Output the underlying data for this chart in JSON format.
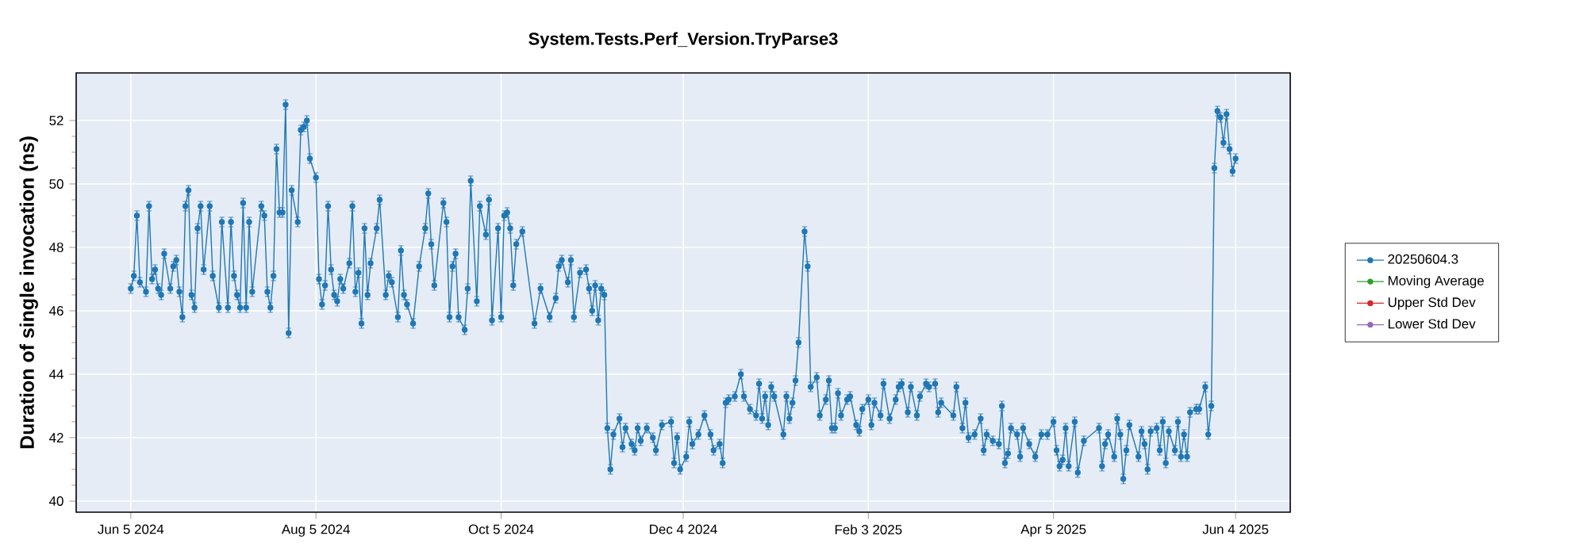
{
  "chart_data": {
    "type": "line",
    "title": "System.Tests.Perf_Version.TryParse3",
    "ylabel": "Duration of single invocation (ns)",
    "x": [
      "2024-06-05",
      "2024-06-06",
      "2024-06-07",
      "2024-06-08",
      "2024-06-10",
      "2024-06-11",
      "2024-06-12",
      "2024-06-13",
      "2024-06-14",
      "2024-06-15",
      "2024-06-16",
      "2024-06-18",
      "2024-06-19",
      "2024-06-20",
      "2024-06-21",
      "2024-06-22",
      "2024-06-23",
      "2024-06-24",
      "2024-06-25",
      "2024-06-26",
      "2024-06-27",
      "2024-06-28",
      "2024-06-29",
      "2024-07-01",
      "2024-07-02",
      "2024-07-04",
      "2024-07-05",
      "2024-07-07",
      "2024-07-08",
      "2024-07-09",
      "2024-07-10",
      "2024-07-11",
      "2024-07-12",
      "2024-07-13",
      "2024-07-14",
      "2024-07-15",
      "2024-07-18",
      "2024-07-19",
      "2024-07-20",
      "2024-07-21",
      "2024-07-22",
      "2024-07-23",
      "2024-07-24",
      "2024-07-25",
      "2024-07-26",
      "2024-07-27",
      "2024-07-28",
      "2024-07-30",
      "2024-07-31",
      "2024-08-01",
      "2024-08-02",
      "2024-08-03",
      "2024-08-05",
      "2024-08-06",
      "2024-08-07",
      "2024-08-08",
      "2024-08-09",
      "2024-08-10",
      "2024-08-11",
      "2024-08-12",
      "2024-08-13",
      "2024-08-14",
      "2024-08-16",
      "2024-08-17",
      "2024-08-18",
      "2024-08-19",
      "2024-08-20",
      "2024-08-21",
      "2024-08-22",
      "2024-08-23",
      "2024-08-25",
      "2024-08-26",
      "2024-08-28",
      "2024-08-29",
      "2024-08-30",
      "2024-09-01",
      "2024-09-02",
      "2024-09-03",
      "2024-09-04",
      "2024-09-06",
      "2024-09-08",
      "2024-09-10",
      "2024-09-11",
      "2024-09-12",
      "2024-09-13",
      "2024-09-16",
      "2024-09-17",
      "2024-09-18",
      "2024-09-19",
      "2024-09-20",
      "2024-09-21",
      "2024-09-23",
      "2024-09-24",
      "2024-09-25",
      "2024-09-27",
      "2024-09-28",
      "2024-09-30",
      "2024-10-01",
      "2024-10-02",
      "2024-10-04",
      "2024-10-05",
      "2024-10-06",
      "2024-10-07",
      "2024-10-08",
      "2024-10-09",
      "2024-10-10",
      "2024-10-12",
      "2024-10-16",
      "2024-10-18",
      "2024-10-21",
      "2024-10-23",
      "2024-10-24",
      "2024-10-25",
      "2024-10-27",
      "2024-10-28",
      "2024-10-29",
      "2024-10-31",
      "2024-11-02",
      "2024-11-03",
      "2024-11-04",
      "2024-11-05",
      "2024-11-06",
      "2024-11-07",
      "2024-11-08",
      "2024-11-09",
      "2024-11-10",
      "2024-11-11",
      "2024-11-13",
      "2024-11-14",
      "2024-11-15",
      "2024-11-17",
      "2024-11-18",
      "2024-11-19",
      "2024-11-20",
      "2024-11-22",
      "2024-11-24",
      "2024-11-25",
      "2024-11-27",
      "2024-11-30",
      "2024-12-01",
      "2024-12-02",
      "2024-12-03",
      "2024-12-05",
      "2024-12-06",
      "2024-12-07",
      "2024-12-09",
      "2024-12-11",
      "2024-12-13",
      "2024-12-14",
      "2024-12-16",
      "2024-12-17",
      "2024-12-18",
      "2024-12-19",
      "2024-12-21",
      "2024-12-23",
      "2024-12-24",
      "2024-12-26",
      "2024-12-28",
      "2024-12-29",
      "2024-12-30",
      "2024-12-31",
      "2025-01-01",
      "2025-01-02",
      "2025-01-03",
      "2025-01-06",
      "2025-01-07",
      "2025-01-08",
      "2025-01-09",
      "2025-01-10",
      "2025-01-11",
      "2025-01-13",
      "2025-01-14",
      "2025-01-15",
      "2025-01-17",
      "2025-01-18",
      "2025-01-20",
      "2025-01-21",
      "2025-01-22",
      "2025-01-23",
      "2025-01-24",
      "2025-01-25",
      "2025-01-27",
      "2025-01-28",
      "2025-01-30",
      "2025-01-31",
      "2025-02-01",
      "2025-02-03",
      "2025-02-04",
      "2025-02-05",
      "2025-02-07",
      "2025-02-08",
      "2025-02-10",
      "2025-02-12",
      "2025-02-13",
      "2025-02-14",
      "2025-02-16",
      "2025-02-17",
      "2025-02-19",
      "2025-02-20",
      "2025-02-22",
      "2025-02-23",
      "2025-02-25",
      "2025-02-26",
      "2025-02-27",
      "2025-03-03",
      "2025-03-04",
      "2025-03-06",
      "2025-03-07",
      "2025-03-08",
      "2025-03-10",
      "2025-03-12",
      "2025-03-13",
      "2025-03-14",
      "2025-03-16",
      "2025-03-18",
      "2025-03-19",
      "2025-03-20",
      "2025-03-21",
      "2025-03-22",
      "2025-03-24",
      "2025-03-25",
      "2025-03-26",
      "2025-03-28",
      "2025-03-30",
      "2025-04-01",
      "2025-04-03",
      "2025-04-05",
      "2025-04-06",
      "2025-04-07",
      "2025-04-08",
      "2025-04-09",
      "2025-04-10",
      "2025-04-12",
      "2025-04-13",
      "2025-04-15",
      "2025-04-20",
      "2025-04-21",
      "2025-04-22",
      "2025-04-23",
      "2025-04-25",
      "2025-04-26",
      "2025-04-27",
      "2025-04-28",
      "2025-04-29",
      "2025-04-30",
      "2025-05-03",
      "2025-05-04",
      "2025-05-05",
      "2025-05-06",
      "2025-05-07",
      "2025-05-09",
      "2025-05-10",
      "2025-05-11",
      "2025-05-12",
      "2025-05-13",
      "2025-05-15",
      "2025-05-16",
      "2025-05-17",
      "2025-05-18",
      "2025-05-19",
      "2025-05-20",
      "2025-05-22",
      "2025-05-23",
      "2025-05-25",
      "2025-05-26",
      "2025-05-27",
      "2025-05-28",
      "2025-05-29",
      "2025-05-30",
      "2025-05-31",
      "2025-06-01",
      "2025-06-02",
      "2025-06-03",
      "2025-06-04"
    ],
    "series": [
      {
        "name": "20250604.3",
        "color": "#1f77b4",
        "values": [
          46.7,
          47.1,
          49.0,
          46.9,
          46.6,
          49.3,
          47.0,
          47.3,
          46.7,
          46.5,
          47.8,
          46.7,
          47.4,
          47.6,
          46.6,
          45.8,
          49.3,
          49.8,
          46.5,
          46.1,
          48.6,
          49.3,
          47.3,
          49.3,
          47.1,
          46.1,
          48.8,
          46.1,
          48.8,
          47.1,
          46.5,
          46.1,
          49.4,
          46.1,
          48.8,
          46.6,
          49.3,
          49.0,
          46.6,
          46.1,
          47.1,
          51.1,
          49.1,
          49.1,
          52.5,
          45.3,
          49.8,
          48.8,
          51.7,
          51.8,
          52.0,
          50.8,
          50.2,
          47.0,
          46.2,
          46.8,
          49.3,
          47.3,
          46.5,
          46.3,
          47.0,
          46.7,
          47.5,
          49.3,
          46.6,
          47.2,
          45.6,
          48.6,
          46.5,
          47.5,
          48.6,
          49.5,
          46.5,
          47.1,
          46.9,
          45.8,
          47.9,
          46.5,
          46.2,
          45.6,
          47.4,
          48.6,
          49.7,
          48.1,
          46.8,
          49.4,
          48.8,
          45.8,
          47.4,
          47.8,
          45.8,
          45.4,
          46.7,
          50.1,
          46.3,
          49.3,
          48.4,
          49.5,
          45.7,
          48.6,
          45.8,
          49.0,
          49.1,
          48.6,
          46.8,
          48.1,
          48.5,
          45.6,
          46.7,
          45.8,
          46.4,
          47.4,
          47.6,
          46.9,
          47.6,
          45.8,
          47.2,
          47.3,
          46.7,
          46.0,
          46.8,
          45.7,
          46.7,
          46.5,
          42.3,
          41.0,
          42.1,
          42.6,
          41.7,
          42.3,
          41.8,
          41.6,
          42.3,
          41.9,
          42.3,
          42.0,
          41.6,
          42.4,
          42.5,
          41.2,
          42.0,
          41.0,
          41.4,
          42.5,
          41.8,
          42.1,
          42.7,
          42.1,
          41.6,
          41.8,
          41.2,
          43.1,
          43.2,
          43.3,
          44.0,
          43.3,
          42.9,
          42.7,
          43.7,
          42.6,
          43.3,
          42.4,
          43.6,
          43.3,
          42.1,
          43.3,
          42.6,
          43.1,
          43.8,
          45.0,
          48.5,
          47.4,
          43.6,
          43.9,
          42.7,
          43.2,
          43.8,
          42.3,
          42.3,
          43.4,
          42.7,
          43.2,
          43.3,
          42.4,
          42.2,
          42.9,
          43.2,
          42.4,
          43.1,
          42.7,
          43.7,
          42.6,
          43.2,
          43.6,
          43.7,
          42.8,
          43.6,
          42.7,
          43.3,
          43.7,
          43.6,
          43.7,
          42.8,
          43.1,
          42.7,
          43.6,
          42.3,
          43.1,
          42.0,
          42.1,
          42.6,
          41.6,
          42.1,
          41.9,
          41.8,
          43.0,
          41.2,
          41.5,
          42.3,
          42.1,
          41.4,
          42.3,
          41.8,
          41.4,
          42.1,
          42.1,
          42.5,
          41.6,
          41.1,
          41.3,
          42.3,
          41.1,
          42.5,
          40.9,
          41.9,
          42.3,
          41.1,
          41.8,
          42.1,
          41.4,
          42.6,
          42.1,
          40.7,
          41.6,
          42.4,
          41.4,
          42.2,
          41.8,
          41.0,
          42.2,
          42.3,
          41.6,
          42.5,
          41.2,
          42.2,
          41.6,
          42.5,
          41.4,
          42.1,
          41.4,
          42.8,
          42.9,
          42.9,
          43.6,
          42.1,
          43.0,
          50.5,
          52.3,
          52.1,
          51.3,
          52.2,
          51.1,
          50.4,
          50.8
        ],
        "errors": [
          0.15,
          0.15,
          0.15,
          0.15,
          0.15,
          0.15,
          0.15,
          0.15,
          0.15,
          0.15,
          0.15,
          0.15,
          0.15,
          0.15,
          0.15,
          0.15,
          0.15,
          0.15,
          0.15,
          0.15,
          0.15,
          0.15,
          0.15,
          0.15,
          0.15,
          0.15,
          0.15,
          0.15,
          0.15,
          0.15,
          0.15,
          0.15,
          0.15,
          0.15,
          0.15,
          0.15,
          0.15,
          0.15,
          0.15,
          0.15,
          0.15,
          0.15,
          0.15,
          0.15,
          0.15,
          0.15,
          0.15,
          0.15,
          0.15,
          0.15,
          0.15,
          0.15,
          0.15,
          0.15,
          0.15,
          0.15,
          0.15,
          0.15,
          0.15,
          0.15,
          0.15,
          0.15,
          0.15,
          0.15,
          0.15,
          0.15,
          0.15,
          0.15,
          0.15,
          0.15,
          0.15,
          0.15,
          0.15,
          0.15,
          0.15,
          0.15,
          0.15,
          0.15,
          0.15,
          0.15,
          0.15,
          0.15,
          0.15,
          0.15,
          0.15,
          0.15,
          0.15,
          0.15,
          0.15,
          0.15,
          0.15,
          0.15,
          0.15,
          0.15,
          0.15,
          0.15,
          0.15,
          0.15,
          0.15,
          0.15,
          0.15,
          0.15,
          0.15,
          0.15,
          0.15,
          0.15,
          0.15,
          0.15,
          0.15,
          0.15,
          0.15,
          0.15,
          0.15,
          0.15,
          0.15,
          0.15,
          0.15,
          0.15,
          0.15,
          0.15,
          0.15,
          0.15,
          0.15,
          0.15,
          0.15,
          0.15,
          0.15,
          0.15,
          0.15,
          0.15,
          0.15,
          0.15,
          0.15,
          0.15,
          0.15,
          0.15,
          0.15,
          0.15,
          0.15,
          0.15,
          0.15,
          0.15,
          0.15,
          0.15,
          0.15,
          0.15,
          0.15,
          0.15,
          0.15,
          0.15,
          0.15,
          0.15,
          0.15,
          0.15,
          0.15,
          0.15,
          0.15,
          0.15,
          0.15,
          0.15,
          0.15,
          0.15,
          0.15,
          0.15,
          0.15,
          0.15,
          0.15,
          0.15,
          0.15,
          0.15,
          0.15,
          0.15,
          0.15,
          0.15,
          0.15,
          0.15,
          0.15,
          0.15,
          0.15,
          0.15,
          0.15,
          0.15,
          0.15,
          0.15,
          0.15,
          0.15,
          0.15,
          0.15,
          0.15,
          0.15,
          0.15,
          0.15,
          0.15,
          0.15,
          0.15,
          0.15,
          0.15,
          0.15,
          0.15,
          0.15,
          0.15,
          0.15,
          0.15,
          0.15,
          0.15,
          0.15,
          0.15,
          0.15,
          0.15,
          0.15,
          0.15,
          0.15,
          0.15,
          0.15,
          0.15,
          0.15,
          0.15,
          0.15,
          0.15,
          0.15,
          0.15,
          0.15,
          0.15,
          0.15,
          0.15,
          0.15,
          0.15,
          0.15,
          0.15,
          0.15,
          0.15,
          0.15,
          0.15,
          0.15,
          0.15,
          0.15,
          0.15,
          0.15,
          0.15,
          0.15,
          0.15,
          0.15,
          0.15,
          0.15,
          0.15,
          0.15,
          0.15,
          0.15,
          0.15,
          0.15,
          0.15,
          0.15,
          0.15,
          0.15,
          0.15,
          0.15,
          0.15,
          0.15,
          0.15,
          0.15,
          0.15,
          0.15,
          0.15,
          0.15,
          0.15,
          0.15,
          0.15,
          0.15,
          0.15,
          0.15,
          0.15,
          0.15,
          0.15,
          0.15
        ]
      },
      {
        "name": "Moving Average",
        "color": "#2ca02c",
        "values": [
          null,
          null,
          null,
          null,
          null,
          null,
          null,
          null,
          null,
          null,
          null,
          null,
          null,
          null,
          null,
          null,
          null,
          null,
          null,
          null,
          null,
          null,
          null,
          null,
          null,
          null,
          null,
          null,
          null,
          null,
          null,
          null,
          null,
          null,
          null,
          null,
          null,
          null,
          null,
          null,
          null,
          null,
          null,
          null,
          null,
          null,
          null,
          null,
          null,
          null,
          null,
          null,
          null,
          null,
          null,
          null,
          null,
          null,
          null,
          null,
          null,
          null,
          null,
          null,
          null,
          null,
          null,
          null,
          null,
          null,
          null,
          null,
          null,
          null,
          null,
          null,
          null,
          null,
          null,
          null,
          null,
          null,
          null,
          null,
          null,
          null,
          null,
          null,
          null,
          null,
          null,
          null,
          null,
          null,
          null,
          null,
          null,
          null,
          null,
          null,
          null,
          null,
          null,
          null,
          null,
          null,
          null,
          null,
          null,
          null,
          null,
          null,
          null,
          null,
          null,
          null,
          null,
          null,
          null,
          null,
          null,
          null,
          null,
          null,
          null,
          null,
          null,
          null,
          null,
          null,
          null,
          null,
          null,
          null,
          null,
          null,
          null,
          null,
          null,
          null,
          null,
          null,
          null,
          null,
          null,
          null,
          null,
          null,
          null,
          null,
          null,
          null,
          null,
          null,
          null,
          null,
          null,
          null,
          null,
          null,
          null,
          null,
          null,
          null,
          null,
          null,
          null,
          null,
          null,
          null,
          null,
          null,
          null,
          null,
          null,
          null,
          null,
          null,
          null,
          null,
          null,
          null,
          null,
          null,
          null,
          null,
          null,
          null,
          null,
          null,
          null,
          null,
          null,
          null,
          null,
          null,
          null,
          null,
          null,
          null,
          null,
          null,
          null,
          null,
          null,
          null,
          null,
          null,
          null,
          null,
          null,
          null,
          null,
          null,
          null,
          null,
          null,
          null,
          null,
          null,
          null,
          null,
          null,
          null,
          null,
          null,
          null,
          null,
          null,
          null,
          null,
          null,
          null,
          null,
          null,
          null,
          null,
          null,
          null,
          null,
          null,
          null,
          null,
          null,
          null,
          null,
          null,
          null,
          null,
          null,
          null,
          null,
          null,
          null,
          null,
          null,
          null,
          null,
          null,
          null,
          null,
          null,
          null,
          null,
          null,
          null,
          null,
          null,
          null,
          null,
          null,
          null,
          null,
          null
        ]
      },
      {
        "name": "Upper Std Dev",
        "color": "#d62728",
        "values": [
          null,
          null,
          null,
          null,
          null,
          null,
          null,
          null,
          null,
          null,
          null,
          null,
          null,
          null,
          null,
          null,
          null,
          null,
          null,
          null,
          null,
          null,
          null,
          null,
          null,
          null,
          null,
          null,
          null,
          null,
          null,
          null,
          null,
          null,
          null,
          null,
          null,
          null,
          null,
          null,
          null,
          null,
          null,
          null,
          null,
          null,
          null,
          null,
          null,
          null,
          null,
          null,
          null,
          null,
          null,
          null,
          null,
          null,
          null,
          null,
          null,
          null,
          null,
          null,
          null,
          null,
          null,
          null,
          null,
          null,
          null,
          null,
          null,
          null,
          null,
          null,
          null,
          null,
          null,
          null,
          null,
          null,
          null,
          null,
          null,
          null,
          null,
          null,
          null,
          null,
          null,
          null,
          null,
          null,
          null,
          null,
          null,
          null,
          null,
          null,
          null,
          null,
          null,
          null,
          null,
          null,
          null,
          null,
          null,
          null,
          null,
          null,
          null,
          null,
          null,
          null,
          null,
          null,
          null,
          null,
          null,
          null,
          null,
          null,
          null,
          null,
          null,
          null,
          null,
          null,
          null,
          null,
          null,
          null,
          null,
          null,
          null,
          null,
          null,
          null,
          null,
          null,
          null,
          null,
          null,
          null,
          null,
          null,
          null,
          null,
          null,
          null,
          null,
          null,
          null,
          null,
          null,
          null,
          null,
          null,
          null,
          null,
          null,
          null,
          null,
          null,
          null,
          null,
          null,
          null,
          null,
          null,
          null,
          null,
          null,
          null,
          null,
          null,
          null,
          null,
          null,
          null,
          null,
          null,
          null,
          null,
          null,
          null,
          null,
          null,
          null,
          null,
          null,
          null,
          null,
          null,
          null,
          null,
          null,
          null,
          null,
          null,
          null,
          null,
          null,
          null,
          null,
          null,
          null,
          null,
          null,
          null,
          null,
          null,
          null,
          null,
          null,
          null,
          null,
          null,
          null,
          null,
          null,
          null,
          null,
          null,
          null,
          null,
          null,
          null,
          null,
          null,
          null,
          null,
          null,
          null,
          null,
          null,
          null,
          null,
          null,
          null,
          null,
          null,
          null,
          null,
          null,
          null,
          null,
          null,
          null,
          null,
          null,
          null,
          null,
          null,
          null,
          null,
          null,
          null,
          null,
          null,
          null,
          null,
          null,
          null,
          null,
          null,
          null,
          null,
          null,
          null,
          null,
          null
        ]
      },
      {
        "name": "Lower Std Dev",
        "color": "#9467bd",
        "values": [
          null,
          null,
          null,
          null,
          null,
          null,
          null,
          null,
          null,
          null,
          null,
          null,
          null,
          null,
          null,
          null,
          null,
          null,
          null,
          null,
          null,
          null,
          null,
          null,
          null,
          null,
          null,
          null,
          null,
          null,
          null,
          null,
          null,
          null,
          null,
          null,
          null,
          null,
          null,
          null,
          null,
          null,
          null,
          null,
          null,
          null,
          null,
          null,
          null,
          null,
          null,
          null,
          null,
          null,
          null,
          null,
          null,
          null,
          null,
          null,
          null,
          null,
          null,
          null,
          null,
          null,
          null,
          null,
          null,
          null,
          null,
          null,
          null,
          null,
          null,
          null,
          null,
          null,
          null,
          null,
          null,
          null,
          null,
          null,
          null,
          null,
          null,
          null,
          null,
          null,
          null,
          null,
          null,
          null,
          null,
          null,
          null,
          null,
          null,
          null,
          null,
          null,
          null,
          null,
          null,
          null,
          null,
          null,
          null,
          null,
          null,
          null,
          null,
          null,
          null,
          null,
          null,
          null,
          null,
          null,
          null,
          null,
          null,
          null,
          null,
          null,
          null,
          null,
          null,
          null,
          null,
          null,
          null,
          null,
          null,
          null,
          null,
          null,
          null,
          null,
          null,
          null,
          null,
          null,
          null,
          null,
          null,
          null,
          null,
          null,
          null,
          null,
          null,
          null,
          null,
          null,
          null,
          null,
          null,
          null,
          null,
          null,
          null,
          null,
          null,
          null,
          null,
          null,
          null,
          null,
          null,
          null,
          null,
          null,
          null,
          null,
          null,
          null,
          null,
          null,
          null,
          null,
          null,
          null,
          null,
          null,
          null,
          null,
          null,
          null,
          null,
          null,
          null,
          null,
          null,
          null,
          null,
          null,
          null,
          null,
          null,
          null,
          null,
          null,
          null,
          null,
          null,
          null,
          null,
          null,
          null,
          null,
          null,
          null,
          null,
          null,
          null,
          null,
          null,
          null,
          null,
          null,
          null,
          null,
          null,
          null,
          null,
          null,
          null,
          null,
          null,
          null,
          null,
          null,
          null,
          null,
          null,
          null,
          null,
          null,
          null,
          null,
          null,
          null,
          null,
          null,
          null,
          null,
          null,
          null,
          null,
          null,
          null,
          null,
          null,
          null,
          null,
          null,
          null,
          null,
          null,
          null,
          null,
          null,
          null,
          null,
          null,
          null,
          null,
          null,
          null,
          null,
          null,
          null
        ]
      }
    ],
    "xlim": [
      "2024-05-18",
      "2025-06-22"
    ],
    "xticks": [
      {
        "value": "2024-06-05",
        "label": "Jun 5 2024"
      },
      {
        "value": "2024-08-05",
        "label": "Aug 5 2024"
      },
      {
        "value": "2024-10-05",
        "label": "Oct 5 2024"
      },
      {
        "value": "2024-12-04",
        "label": "Dec 4 2024"
      },
      {
        "value": "2025-02-03",
        "label": "Feb 3 2025"
      },
      {
        "value": "2025-04-05",
        "label": "Apr 5 2025"
      },
      {
        "value": "2025-06-04",
        "label": "Jun 4 2025"
      }
    ],
    "ylim": [
      39.65,
      53.5
    ],
    "yticks": [
      40,
      42,
      44,
      46,
      48,
      50,
      52
    ],
    "grid": true,
    "legend": "right",
    "marker": "circle",
    "line_style": "solid"
  }
}
